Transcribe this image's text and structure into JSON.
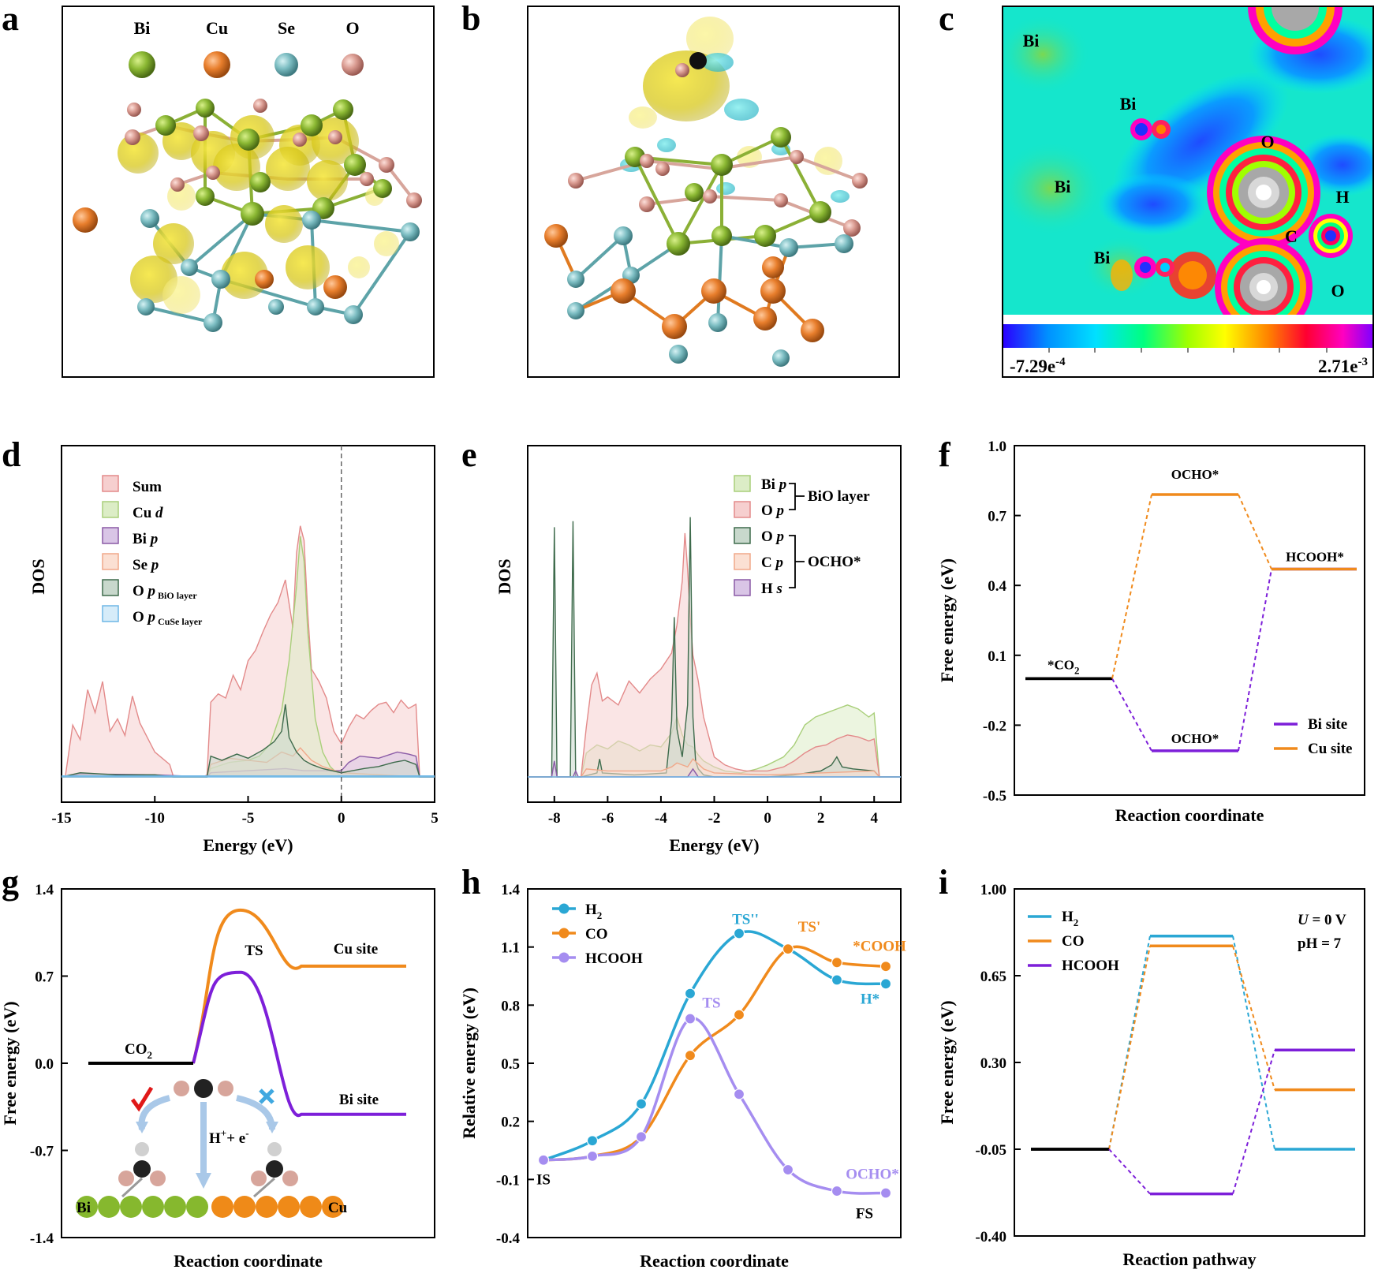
{
  "panel_letters": [
    "a",
    "b",
    "c",
    "d",
    "e",
    "f",
    "g",
    "h",
    "i"
  ],
  "panel_a": {
    "legend": [
      {
        "label": "Bi",
        "color": "#7fae2b"
      },
      {
        "label": "Cu",
        "color": "#e07a3c"
      },
      {
        "label": "Se",
        "color": "#6fb3b8"
      },
      {
        "label": "O",
        "color": "#d79a90"
      }
    ]
  },
  "panel_c": {
    "atom_labels": [
      "Bi",
      "Bi",
      "Bi",
      "Bi",
      "O",
      "H",
      "C",
      "O"
    ],
    "colorbar_min": "-7.29e",
    "colorbar_min_exp": "-4",
    "colorbar_max": "2.71e",
    "colorbar_max_exp": "-3"
  },
  "chart_data": [
    {
      "panel": "d",
      "type": "area",
      "xlabel": "Energy (eV)",
      "ylabel": "DOS",
      "xlim": [
        -15,
        5
      ],
      "xticks": [
        "-15",
        "-10",
        "-5",
        "0",
        "5"
      ],
      "fermi_line": 0,
      "series": [
        {
          "name": "Sum",
          "color": "#e38a8a",
          "fill": "#f6cfcf",
          "x": [
            -15,
            -14.8,
            -14.4,
            -14,
            -13.6,
            -13.2,
            -12.8,
            -12.4,
            -12,
            -11.6,
            -11.2,
            -10.8,
            -10.4,
            -10,
            -9.6,
            -9.2,
            -9,
            -8,
            -7.4,
            -7.2,
            -7,
            -6.6,
            -6.2,
            -5.8,
            -5.4,
            -5,
            -4.6,
            -4.2,
            -3.8,
            -3.4,
            -3,
            -2.6,
            -2.4,
            -2.2,
            -2,
            -1.8,
            -1.6,
            -1.2,
            -0.8,
            -0.4,
            0,
            0.4,
            0.8,
            1.2,
            1.6,
            2,
            2.4,
            2.8,
            3.2,
            3.6,
            4,
            4.2,
            5
          ],
          "y": [
            0,
            0,
            2.5,
            1.8,
            4.2,
            3.1,
            4.6,
            2.2,
            2.8,
            2.0,
            3.9,
            2.6,
            1.9,
            1.2,
            0.9,
            0.6,
            0,
            0,
            0,
            0.1,
            3.6,
            4.0,
            3.8,
            4.9,
            4.2,
            5.6,
            6.1,
            7.0,
            7.8,
            8.4,
            9.5,
            7.2,
            10.8,
            12.1,
            11.4,
            7.9,
            5.2,
            4.6,
            3.8,
            2.2,
            1.6,
            2.4,
            3.0,
            2.8,
            3.2,
            3.5,
            3.6,
            3.1,
            3.7,
            3.3,
            3.5,
            0,
            0
          ]
        },
        {
          "name": "Cu d",
          "color": "#a9cf7a",
          "fill": "#dcedc6",
          "x": [
            -15,
            -7.2,
            -7,
            -6,
            -5,
            -4.4,
            -3.8,
            -3.2,
            -2.8,
            -2.4,
            -2.2,
            -2,
            -1.8,
            -1.4,
            -1,
            -0.6,
            0,
            4.2,
            5
          ],
          "y": [
            0,
            0,
            0.4,
            0.7,
            0.8,
            1.0,
            1.6,
            3.2,
            5.6,
            9.2,
            11.6,
            10.4,
            7.0,
            2.8,
            1.2,
            0.5,
            0,
            0,
            0
          ]
        },
        {
          "name": "Bi p",
          "color": "#8a5aa6",
          "fill": "#d9c5e6",
          "x": [
            -15,
            -14,
            -10,
            -7.2,
            -7,
            -5,
            -3,
            -2,
            -1,
            0,
            0.4,
            1,
            2,
            3,
            3.6,
            4,
            4.2,
            5
          ],
          "y": [
            0,
            0.15,
            0.1,
            0,
            0.2,
            0.3,
            0.4,
            0.3,
            0.3,
            0.3,
            0.7,
            1.0,
            0.9,
            1.2,
            1.1,
            1.0,
            0,
            0
          ]
        },
        {
          "name": "Se p",
          "color": "#f0a88a",
          "fill": "#fbe0d3",
          "x": [
            -15,
            -7.2,
            -7,
            -6,
            -5,
            -4,
            -3.2,
            -2.6,
            -2.2,
            -1.6,
            -1,
            0,
            4.2,
            5
          ],
          "y": [
            0,
            0,
            0.6,
            0.9,
            0.8,
            0.7,
            1.2,
            1.0,
            1.4,
            0.8,
            0.5,
            0.2,
            0,
            0
          ]
        },
        {
          "name": "O p BiO layer",
          "color": "#3e6b4c",
          "fill": "#c8d8cc",
          "x": [
            -15,
            -14,
            -12,
            -10,
            -9,
            -7.2,
            -7,
            -6.4,
            -5.6,
            -5,
            -4.2,
            -3.6,
            -3.2,
            -3,
            -2.8,
            -2.4,
            -2,
            -1.6,
            -1,
            0,
            0.6,
            1.2,
            2,
            2.8,
            3.4,
            4,
            4.2,
            5
          ],
          "y": [
            0,
            0.2,
            0.1,
            0.1,
            0,
            0,
            1.0,
            0.8,
            1.1,
            0.9,
            1.3,
            1.7,
            2.2,
            3.5,
            1.9,
            1.2,
            0.8,
            0.6,
            0.4,
            0.2,
            0.3,
            0.4,
            0.5,
            0.7,
            0.8,
            0.6,
            0,
            0
          ]
        },
        {
          "name": "O p CuSe layer",
          "color": "#6fb7e6",
          "fill": "#d6ecf9",
          "x": [
            -15,
            5
          ],
          "y": [
            0.05,
            0.05
          ]
        }
      ]
    },
    {
      "panel": "e",
      "type": "area",
      "xlabel": "Energy (eV)",
      "ylabel": "DOS",
      "xlim": [
        -9,
        5
      ],
      "xticks": [
        "-8",
        "-6",
        "-4",
        "-2",
        "0",
        "2",
        "4"
      ],
      "legend_groups": [
        {
          "label": "BiO layer",
          "members": [
            "Bi p",
            "O p"
          ]
        },
        {
          "label": "OCHO*",
          "members": [
            "O p",
            "C p",
            "H s"
          ]
        }
      ],
      "series": [
        {
          "name": "Bi p",
          "group": "BiO layer",
          "color": "#a9cf7a",
          "fill": "#dcedc6",
          "x": [
            -9,
            -7,
            -6.8,
            -6.4,
            -6,
            -5.6,
            -5.2,
            -4.8,
            -4.4,
            -4,
            -3.6,
            -3.4,
            -3.2,
            -3,
            -2.8,
            -2.6,
            -2.4,
            -2,
            -1.6,
            -1,
            -0.4,
            0,
            0.6,
            1,
            1.4,
            1.8,
            2.2,
            2.6,
            3,
            3.4,
            3.8,
            4,
            4.2,
            5
          ],
          "y": [
            0,
            0,
            1.2,
            1.6,
            1.4,
            1.8,
            1.6,
            1.3,
            1.6,
            1.5,
            2.2,
            3.0,
            2.1,
            1.6,
            1.5,
            1.1,
            0.8,
            0.5,
            0.3,
            0.2,
            0.4,
            0.6,
            1.0,
            1.6,
            2.6,
            3.0,
            3.2,
            3.4,
            3.6,
            3.4,
            3.0,
            3.2,
            0,
            0
          ]
        },
        {
          "name": "O p",
          "group": "BiO layer",
          "color": "#e38a8a",
          "fill": "#f6cfcf",
          "x": [
            -9,
            -7,
            -6.8,
            -6.6,
            -6.4,
            -6.2,
            -6,
            -5.6,
            -5.2,
            -4.8,
            -4.4,
            -4,
            -3.6,
            -3.4,
            -3.2,
            -3.1,
            -3,
            -2.9,
            -2.8,
            -2.6,
            -2.4,
            -2.2,
            -2,
            -1.6,
            -1.2,
            -0.8,
            -0.4,
            0,
            0.6,
            1,
            1.4,
            1.8,
            2.2,
            2.6,
            3,
            3.4,
            3.8,
            4,
            4.2,
            5
          ],
          "y": [
            0,
            0,
            2.5,
            4.6,
            5.2,
            3.8,
            4.0,
            3.6,
            4.8,
            4.2,
            4.9,
            5.4,
            6.2,
            7.6,
            9.8,
            12.2,
            10.4,
            8.0,
            6.1,
            4.8,
            3.0,
            2.0,
            1.0,
            0.6,
            0.4,
            0.3,
            0.3,
            0.3,
            0.5,
            0.8,
            1.2,
            1.5,
            1.6,
            1.9,
            2.1,
            2.0,
            1.8,
            1.9,
            0,
            0
          ]
        },
        {
          "name": "O p",
          "group": "OCHO*",
          "color": "#3e6b4c",
          "fill": "#c8d8cc",
          "x": [
            -9,
            -8.1,
            -8,
            -7.9,
            -7.4,
            -7.3,
            -7.2,
            -7.1,
            -7,
            -6.4,
            -6.3,
            -6.2,
            -5,
            -3.8,
            -3.6,
            -3.5,
            -3.4,
            -3.2,
            -3,
            -2.9,
            -2.8,
            -2.7,
            -2.6,
            -2.4,
            -2,
            0,
            1,
            2,
            2.4,
            2.6,
            2.8,
            3.2,
            4,
            4.2,
            5
          ],
          "y": [
            0,
            0,
            12.5,
            0,
            0,
            12.8,
            0,
            0,
            0,
            0.2,
            0.9,
            0.2,
            0.1,
            0.2,
            2.8,
            8.0,
            2.4,
            1.0,
            3.6,
            13.0,
            3.0,
            0.8,
            0.4,
            0.1,
            0,
            0,
            0.1,
            0.3,
            0.6,
            1.0,
            0.5,
            0.4,
            0.3,
            0,
            0
          ]
        },
        {
          "name": "C p",
          "group": "OCHO*",
          "color": "#f0a88a",
          "fill": "#fbe0d3",
          "x": [
            -9,
            -7,
            -6.8,
            -6,
            -5,
            -4,
            -3.6,
            -3.4,
            -3,
            -2.8,
            -2.4,
            -2,
            0,
            2,
            4,
            4.2,
            5
          ],
          "y": [
            0,
            0,
            0.4,
            0.3,
            0.3,
            0.3,
            0.5,
            0.7,
            0.5,
            0.9,
            0.4,
            0.2,
            0.1,
            0.2,
            0.3,
            0,
            0
          ]
        },
        {
          "name": "H s",
          "group": "OCHO*",
          "color": "#8a5aa6",
          "fill": "#d9c5e6",
          "x": [
            -9,
            -8.1,
            -8,
            -7.9,
            -7.3,
            -7.2,
            -7.1,
            -3,
            -2.8,
            -2.7,
            -2.6,
            0,
            5
          ],
          "y": [
            0,
            0,
            0.8,
            0,
            0,
            0.3,
            0,
            0,
            0.4,
            0.2,
            0,
            0,
            0
          ]
        }
      ]
    },
    {
      "panel": "f",
      "type": "line",
      "xlabel": "Reaction coordinate",
      "ylabel": "Free energy (eV)",
      "ylim": [
        -0.5,
        1.0
      ],
      "yticks": [
        "1.0",
        "0.7",
        "0.4",
        "0.1",
        "-0.2",
        "-0.5"
      ],
      "series": [
        {
          "name": "Bi site",
          "color": "#7d1fd9",
          "steps": [
            0.0,
            -0.31,
            0.47
          ],
          "labels": [
            "*CO2",
            "OCHO*",
            "HCOOH*"
          ]
        },
        {
          "name": "Cu site",
          "color": "#f08a1c",
          "steps": [
            0.0,
            0.79,
            0.47
          ],
          "labels": [
            "*CO2",
            "OCHO*",
            "HCOOH*"
          ]
        }
      ],
      "level_labels": {
        "start": "*CO",
        "start_sub": "2",
        "bi_mid": "OCHO*",
        "cu_mid": "OCHO*",
        "end": "HCOOH*"
      },
      "legend": [
        "Bi site",
        "Cu site"
      ]
    },
    {
      "panel": "g",
      "type": "line",
      "xlabel": "Reaction coordinate",
      "ylabel": "Free energy (eV)",
      "ylim": [
        -1.4,
        1.4
      ],
      "yticks": [
        "1.4",
        "0.7",
        "0.0",
        "-0.7",
        "-1.4"
      ],
      "series": [
        {
          "name": "Cu site",
          "color": "#f08a1c",
          "initial": 0.0,
          "ts": 1.23,
          "final": 0.78
        },
        {
          "name": "Bi site",
          "color": "#7d1fd9",
          "initial": 0.0,
          "ts": 0.73,
          "final": -0.41
        }
      ],
      "labels": {
        "initial": "CO",
        "initial_sub": "2",
        "ts": "TS",
        "cu": "Cu site",
        "bi": "Bi site",
        "reaction": "H",
        "reaction_sup": "+",
        "reaction_rest": "+ e",
        "reaction_sup2": "-",
        "left_atom": "Bi",
        "right_atom": "Cu"
      }
    },
    {
      "panel": "h",
      "type": "line",
      "xlabel": "Reaction coordinate",
      "ylabel": "Relative energy (eV)",
      "ylim": [
        -0.4,
        1.4
      ],
      "yticks": [
        "1.4",
        "1.1",
        "0.8",
        "0.5",
        "0.2",
        "-0.1",
        "-0.4"
      ],
      "x": [
        0,
        1,
        2,
        3,
        4,
        5,
        6,
        7
      ],
      "series": [
        {
          "name": "H2",
          "legend_main": "H",
          "legend_sub": "2",
          "color": "#2aa7d4",
          "values": [
            0.0,
            0.1,
            0.29,
            0.86,
            1.17,
            1.09,
            0.93,
            0.91
          ]
        },
        {
          "name": "CO",
          "legend_main": "CO",
          "legend_sub": "",
          "color": "#f08a1c",
          "values": [
            0.0,
            0.02,
            0.12,
            0.54,
            0.75,
            1.09,
            1.02,
            1.0
          ]
        },
        {
          "name": "HCOOH",
          "legend_main": "HCOOH",
          "legend_sub": "",
          "color": "#a58df0",
          "values": [
            0.0,
            0.02,
            0.12,
            0.73,
            0.34,
            -0.05,
            -0.16,
            -0.17
          ]
        }
      ],
      "annotations": {
        "IS": "IS",
        "TS_H2": "TS''",
        "TS_CO": "TS'",
        "COOH": "*COOH",
        "H": "H*",
        "TS_HCOOH": "TS",
        "OCHO": "OCHO*",
        "FS": "FS"
      }
    },
    {
      "panel": "i",
      "type": "line",
      "xlabel": "Reaction pathway",
      "ylabel": "Free energy (eV)",
      "ylim": [
        -0.4,
        1.0
      ],
      "yticks": [
        "1.00",
        "0.65",
        "0.30",
        "-0.05",
        "-0.40"
      ],
      "conditions": {
        "U_label": "U",
        "U_value": " = 0 V",
        "pH": "pH = 7"
      },
      "series": [
        {
          "name": "H2",
          "legend_main": "H",
          "legend_sub": "2",
          "color": "#2aa7d4",
          "steps": [
            0.0,
            0.86,
            0.0
          ]
        },
        {
          "name": "CO",
          "legend_main": "CO",
          "legend_sub": "",
          "color": "#f08a1c",
          "steps": [
            0.0,
            0.82,
            0.24
          ]
        },
        {
          "name": "HCOOH",
          "legend_main": "HCOOH",
          "legend_sub": "",
          "color": "#7d1fd9",
          "steps": [
            0.0,
            -0.18,
            0.4
          ]
        }
      ]
    }
  ]
}
